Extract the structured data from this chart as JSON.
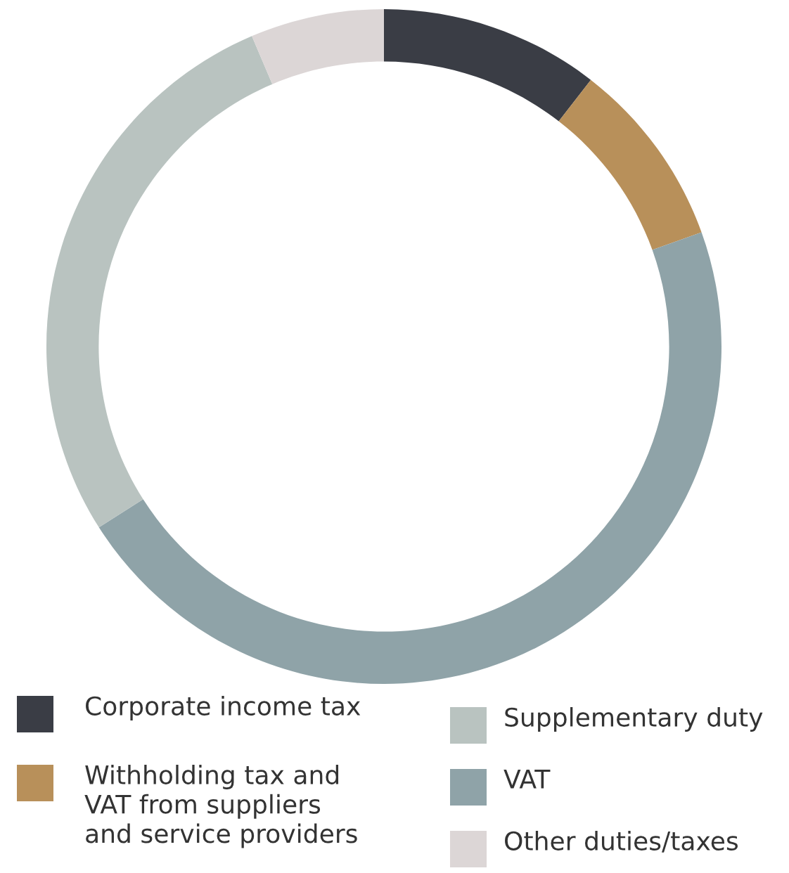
{
  "chart_data": {
    "type": "donut",
    "categories": [
      "Corporate income tax",
      "Withholding tax and\nVAT from suppliers\nand service providers",
      "VAT",
      "Supplementary duty",
      "Other duties/taxes"
    ],
    "values": [
      10.5,
      9,
      46.5,
      27.6,
      6.4
    ],
    "colors": [
      "#3a3d45",
      "#b8905a",
      "#8fa3a8",
      "#b9c3c0",
      "#dcd6d6"
    ],
    "legend": "bottom"
  }
}
